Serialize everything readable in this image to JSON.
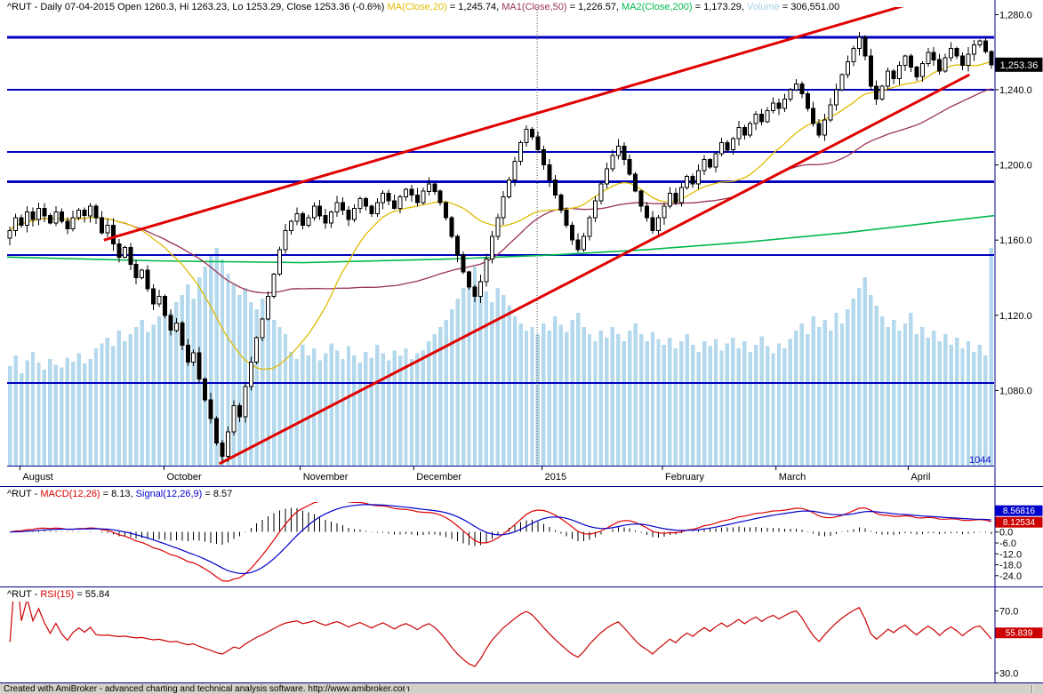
{
  "status_bar": {
    "text": "Created with AmiBroker - advanced charting and technical analysis software. http://www.amibroker.com"
  },
  "titles": {
    "main": [
      {
        "text": "^RUT - Daily 07-04-2015 Open 1260.3, Hi 1263.23, Lo 1253.29, Close 1253.36 (-0.6%) ",
        "color": "#000000"
      },
      {
        "text": "MA(Close,20)",
        "color": "#dfbc00"
      },
      {
        "text": " = 1,245.74, ",
        "color": "#000000"
      },
      {
        "text": "MA1(Close,50)",
        "color": "#993355"
      },
      {
        "text": " = 1,226.57, ",
        "color": "#000000"
      },
      {
        "text": "MA2(Close,200)",
        "color": "#00b84c"
      },
      {
        "text": " = 1,173.29, ",
        "color": "#000000"
      },
      {
        "text": "Volume",
        "color": "#a8cfe6"
      },
      {
        "text": " = 306,551.00",
        "color": "#000000"
      }
    ],
    "macd": [
      {
        "text": "^RUT - ",
        "color": "#000000"
      },
      {
        "text": "MACD(12,26)",
        "color": "#dd0000"
      },
      {
        "text": " = 8.13, ",
        "color": "#000000"
      },
      {
        "text": "Signal(12,26,9)",
        "color": "#0000cc"
      },
      {
        "text": " = 8.57",
        "color": "#000000"
      }
    ],
    "rsi": [
      {
        "text": "^RUT - ",
        "color": "#000000"
      },
      {
        "text": "RSI(15)",
        "color": "#dd0000"
      },
      {
        "text": " = 55.84",
        "color": "#000000"
      }
    ]
  },
  "chart_data": [
    {
      "type": "candlestick",
      "symbol": "^RUT",
      "timeframe": "Daily",
      "date_shown": "07-04-2015",
      "last_bar": {
        "open": 1260.3,
        "high": 1263.23,
        "low": 1253.29,
        "close": 1253.36,
        "change_pct": "-0.6%"
      },
      "indicator_values": {
        "ma20": "1,245.74",
        "ma50": "1,226.57",
        "ma200": "1,173.29",
        "volume": "306,551.00"
      },
      "price_range": [
        1040,
        1284
      ],
      "y_ticks": [
        {
          "v": 1280,
          "label": "1,280.0"
        },
        {
          "v": 1240,
          "label": "1,240.0"
        },
        {
          "v": 1200,
          "label": "1,200.0"
        },
        {
          "v": 1160,
          "label": "1,160.0"
        },
        {
          "v": 1120,
          "label": "1,120.0"
        },
        {
          "v": 1080,
          "label": "1,080.0"
        }
      ],
      "bottom_label": {
        "v": 1044,
        "label": "1044",
        "color": "#0000cc"
      },
      "last_price_box": {
        "v": 1253.36,
        "label": "1,253.36",
        "bg": "#000000",
        "fg": "#ffffff"
      },
      "x_labels": [
        {
          "f": 0.013,
          "label": "August"
        },
        {
          "f": 0.159,
          "label": "October"
        },
        {
          "f": 0.297,
          "label": "November"
        },
        {
          "f": 0.412,
          "label": "December"
        },
        {
          "f": 0.542,
          "label": "2015"
        },
        {
          "f": 0.664,
          "label": "February"
        },
        {
          "f": 0.779,
          "label": "March"
        },
        {
          "f": 0.913,
          "label": "April"
        }
      ],
      "closes": [
        1165,
        1172,
        1168,
        1175,
        1171,
        1177,
        1173,
        1169,
        1175,
        1170,
        1166,
        1172,
        1176,
        1173,
        1178,
        1172,
        1164,
        1168,
        1158,
        1151,
        1156,
        1147,
        1140,
        1144,
        1134,
        1126,
        1130,
        1120,
        1112,
        1116,
        1104,
        1095,
        1100,
        1086,
        1075,
        1065,
        1052,
        1045,
        1058,
        1072,
        1066,
        1082,
        1095,
        1108,
        1118,
        1130,
        1142,
        1155,
        1165,
        1170,
        1174,
        1168,
        1172,
        1178,
        1173,
        1169,
        1175,
        1180,
        1176,
        1171,
        1177,
        1182,
        1178,
        1174,
        1180,
        1185,
        1181,
        1177,
        1183,
        1187,
        1184,
        1180,
        1186,
        1190,
        1186,
        1180,
        1172,
        1162,
        1152,
        1143,
        1135,
        1130,
        1138,
        1150,
        1162,
        1172,
        1183,
        1192,
        1202,
        1212,
        1219,
        1215,
        1208,
        1200,
        1192,
        1184,
        1176,
        1168,
        1160,
        1155,
        1162,
        1172,
        1181,
        1190,
        1198,
        1205,
        1210,
        1203,
        1195,
        1186,
        1178,
        1172,
        1165,
        1172,
        1178,
        1185,
        1180,
        1188,
        1194,
        1190,
        1197,
        1203,
        1199,
        1206,
        1212,
        1208,
        1214,
        1220,
        1216,
        1222,
        1227,
        1223,
        1229,
        1233,
        1230,
        1235,
        1240,
        1243,
        1238,
        1230,
        1222,
        1216,
        1224,
        1232,
        1240,
        1248,
        1255,
        1262,
        1268,
        1258,
        1242,
        1235,
        1242,
        1250,
        1246,
        1253,
        1258,
        1252,
        1247,
        1254,
        1260,
        1256,
        1250,
        1257,
        1262,
        1258,
        1253,
        1259,
        1264,
        1266,
        1260.3,
        1253.36
      ],
      "volumes_k": [
        140,
        155,
        130,
        148,
        160,
        145,
        135,
        150,
        142,
        138,
        152,
        146,
        158,
        144,
        150,
        165,
        172,
        180,
        168,
        190,
        175,
        185,
        195,
        205,
        188,
        198,
        210,
        220,
        215,
        230,
        240,
        255,
        235,
        265,
        280,
        295,
        306,
        290,
        270,
        255,
        240,
        250,
        230,
        220,
        235,
        215,
        205,
        195,
        185,
        160,
        150,
        170,
        155,
        165,
        148,
        158,
        172,
        162,
        150,
        168,
        155,
        145,
        160,
        152,
        170,
        158,
        148,
        162,
        155,
        165,
        150,
        158,
        162,
        175,
        185,
        195,
        205,
        220,
        235,
        250,
        265,
        280,
        260,
        245,
        230,
        250,
        240,
        225,
        210,
        200,
        190,
        195,
        185,
        200,
        190,
        210,
        198,
        188,
        205,
        215,
        195,
        185,
        175,
        190,
        180,
        195,
        185,
        175,
        190,
        200,
        185,
        175,
        188,
        178,
        170,
        180,
        165,
        175,
        185,
        170,
        160,
        175,
        168,
        178,
        162,
        172,
        180,
        165,
        175,
        160,
        170,
        182,
        168,
        158,
        172,
        165,
        178,
        190,
        200,
        185,
        210,
        195,
        205,
        190,
        215,
        200,
        220,
        235,
        250,
        265,
        240,
        225,
        210,
        195,
        205,
        190,
        200,
        215,
        185,
        195,
        180,
        190,
        175,
        185,
        170,
        180,
        165,
        175,
        160,
        170,
        155,
        306
      ],
      "volume_axis_max_k": 310,
      "hlines": [
        {
          "p": 1268,
          "w": 3
        },
        {
          "p": 1240,
          "w": 2
        },
        {
          "p": 1207,
          "w": 2
        },
        {
          "p": 1191,
          "w": 3
        },
        {
          "p": 1152,
          "w": 2
        },
        {
          "p": 1084,
          "w": 2
        }
      ],
      "hline_color": "#0000bf",
      "trendlines": [
        {
          "f1": 0.098,
          "p1": 1160,
          "f2": 0.93,
          "p2": 1288,
          "color": "#e00000",
          "w": 3
        },
        {
          "f1": 0.215,
          "p1": 1041,
          "f2": 0.975,
          "p2": 1248,
          "color": "#e00000",
          "w": 3
        }
      ],
      "year_divider_f": 0.537,
      "ma200_points": [
        {
          "f": 0,
          "p": 1151
        },
        {
          "f": 0.15,
          "p": 1149
        },
        {
          "f": 0.3,
          "p": 1148
        },
        {
          "f": 0.45,
          "p": 1150
        },
        {
          "f": 0.55,
          "p": 1152
        },
        {
          "f": 0.65,
          "p": 1155
        },
        {
          "f": 0.75,
          "p": 1159
        },
        {
          "f": 0.85,
          "p": 1164
        },
        {
          "f": 0.95,
          "p": 1170
        },
        {
          "f": 1,
          "p": 1173
        }
      ],
      "colors": {
        "ma20": "#dfbc00",
        "ma50": "#993355",
        "ma200": "#00b84c",
        "volume": "#b5d9ec",
        "up": "#ffffff",
        "down": "#000000"
      }
    },
    {
      "type": "line",
      "name": "MACD",
      "fast": 12,
      "slow": 26,
      "signal_period": 9,
      "macd_last": 8.13,
      "signal_last": 8.57,
      "range": [
        -28,
        16.5
      ],
      "y_ticks": [
        {
          "v": 0,
          "label": "0.0"
        },
        {
          "v": -6,
          "label": "-6.0"
        },
        {
          "v": -12,
          "label": "-12.0"
        },
        {
          "v": -18,
          "label": "-18.0"
        },
        {
          "v": -24,
          "label": "-24.0"
        }
      ],
      "value_boxes": [
        {
          "v": 8.56816,
          "label": "8.56816",
          "bg": "#0000cc"
        },
        {
          "v": 8.12534,
          "label": "8.12534",
          "bg": "#cc0000"
        }
      ],
      "colors": {
        "macd": "#dd0000",
        "signal": "#0000cc",
        "hist": "#000000"
      }
    },
    {
      "type": "line",
      "name": "RSI",
      "period": 15,
      "last": 55.84,
      "range": [
        25,
        76
      ],
      "y_ticks": [
        {
          "v": 70,
          "label": "70.0"
        },
        {
          "v": 30,
          "label": "30.0"
        }
      ],
      "value_box": {
        "v": 55.839,
        "label": "55.839",
        "bg": "#cc0000"
      },
      "color": "#cc0000"
    }
  ]
}
